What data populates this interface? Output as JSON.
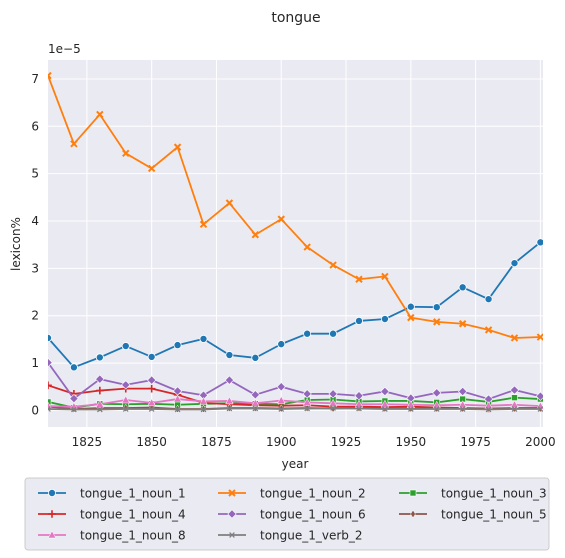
{
  "chart_data": {
    "type": "line",
    "title": "tongue",
    "xlabel": "year",
    "ylabel": "lexicon%",
    "y_offset_label": "1e−5",
    "xlim": [
      1810,
      2001
    ],
    "ylim": [
      -0.35,
      7.4
    ],
    "x_ticks": [
      1825,
      1850,
      1875,
      1900,
      1925,
      1950,
      1975,
      2000
    ],
    "x_tick_labels": [
      "1825",
      "1850",
      "1875",
      "1900",
      "1925",
      "1950",
      "1975",
      "2000"
    ],
    "y_ticks": [
      0,
      1,
      2,
      3,
      4,
      5,
      6,
      7
    ],
    "y_tick_labels": [
      "0",
      "1",
      "2",
      "3",
      "4",
      "5",
      "6",
      "7"
    ],
    "grid": true,
    "background": "#eaeaf2",
    "legend_placement": "below plot, 3 columns",
    "x": [
      1810,
      1820,
      1830,
      1840,
      1850,
      1860,
      1870,
      1880,
      1890,
      1900,
      1910,
      1920,
      1930,
      1940,
      1950,
      1960,
      1970,
      1980,
      1990,
      2000
    ],
    "series": [
      {
        "name": "tongue_1_noun_1",
        "color": "#1f77b4",
        "marker": "circle",
        "values": [
          1.53,
          0.91,
          1.12,
          1.36,
          1.13,
          1.38,
          1.51,
          1.17,
          1.11,
          1.4,
          1.62,
          1.62,
          1.89,
          1.93,
          2.19,
          2.18,
          2.6,
          2.35,
          3.11,
          3.55
        ]
      },
      {
        "name": "tongue_1_noun_2",
        "color": "#ff7f0e",
        "marker": "x",
        "values": [
          7.07,
          5.63,
          6.25,
          5.43,
          5.11,
          5.56,
          3.93,
          4.38,
          3.71,
          4.04,
          3.45,
          3.07,
          2.77,
          2.83,
          1.96,
          1.87,
          1.83,
          1.7,
          1.53,
          1.55
        ]
      },
      {
        "name": "tongue_1_noun_3",
        "color": "#2ca02c",
        "marker": "square",
        "values": [
          0.18,
          0.06,
          0.14,
          0.13,
          0.14,
          0.12,
          0.14,
          0.15,
          0.14,
          0.13,
          0.22,
          0.23,
          0.19,
          0.2,
          0.2,
          0.17,
          0.24,
          0.18,
          0.27,
          0.24
        ]
      },
      {
        "name": "tongue_1_noun_4",
        "color": "#d62728",
        "marker": "plus",
        "values": [
          0.53,
          0.35,
          0.42,
          0.46,
          0.46,
          0.33,
          0.16,
          0.13,
          0.11,
          0.1,
          0.11,
          0.08,
          0.08,
          0.07,
          0.08,
          0.06,
          0.05,
          0.04,
          0.05,
          0.05
        ]
      },
      {
        "name": "tongue_1_noun_6",
        "color": "#9467bd",
        "marker": "diamond",
        "values": [
          1.01,
          0.25,
          0.66,
          0.54,
          0.64,
          0.41,
          0.32,
          0.64,
          0.33,
          0.5,
          0.35,
          0.35,
          0.31,
          0.4,
          0.26,
          0.37,
          0.4,
          0.24,
          0.43,
          0.3
        ]
      },
      {
        "name": "tongue_1_noun_5",
        "color": "#8c564b",
        "marker": "thin_diamond",
        "values": [
          0.08,
          0.03,
          0.05,
          0.05,
          0.06,
          0.03,
          0.03,
          0.05,
          0.05,
          0.04,
          0.05,
          0.04,
          0.05,
          0.04,
          0.04,
          0.04,
          0.04,
          0.04,
          0.04,
          0.04
        ]
      },
      {
        "name": "tongue_1_noun_8",
        "color": "#e377c2",
        "marker": "triangle",
        "values": [
          0.09,
          0.08,
          0.13,
          0.22,
          0.16,
          0.24,
          0.19,
          0.2,
          0.15,
          0.21,
          0.17,
          0.15,
          0.13,
          0.13,
          0.12,
          0.11,
          0.12,
          0.1,
          0.12,
          0.09
        ]
      },
      {
        "name": "tongue_1_verb_2",
        "color": "#7f7f7f",
        "marker": "x_small",
        "values": [
          0.03,
          0.02,
          0.02,
          0.03,
          0.03,
          0.02,
          0.02,
          0.04,
          0.04,
          0.03,
          0.04,
          0.05,
          0.04,
          0.03,
          0.03,
          0.03,
          0.03,
          0.02,
          0.03,
          0.03
        ]
      }
    ],
    "legend_order": [
      "tongue_1_noun_1",
      "tongue_1_noun_4",
      "tongue_1_noun_8",
      "tongue_1_noun_2",
      "tongue_1_noun_6",
      "tongue_1_verb_2",
      "tongue_1_noun_3",
      "tongue_1_noun_5"
    ]
  }
}
